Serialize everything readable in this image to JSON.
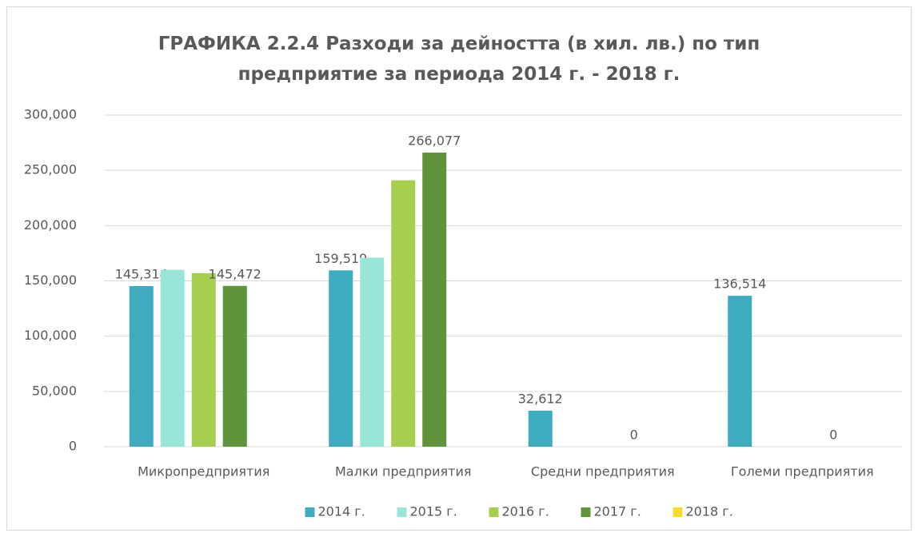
{
  "chart_data": {
    "type": "bar",
    "title": "ГРАФИКА 2.2.4 Разходи за дейността (в хил. лв.) по тип предприятие за периода 2014 г. - 2018 г.",
    "categories": [
      "Микропредприятия",
      "Малки предприятия",
      "Средни предприятия",
      "Големи предприятия"
    ],
    "series": [
      {
        "name": "2014 г.",
        "color": "#3eacbe",
        "values": [
          145314,
          159519,
          32612,
          136514
        ],
        "value_labels": [
          "145,314",
          "159,519",
          "32,612",
          "136,514"
        ]
      },
      {
        "name": "2015 г.",
        "color": "#99e6d8",
        "values": [
          160000,
          171000,
          null,
          null
        ]
      },
      {
        "name": "2016 г.",
        "color": "#a5cf4c",
        "values": [
          157000,
          241000,
          null,
          null
        ]
      },
      {
        "name": "2017 г.",
        "color": "#5e943c",
        "values": [
          145472,
          266077,
          0,
          0
        ],
        "value_labels": [
          "145,472",
          "266,077",
          "0",
          "0"
        ]
      },
      {
        "name": "2018 г.",
        "color": "#f5dc2e",
        "values": [
          null,
          null,
          null,
          null
        ]
      }
    ],
    "ylim": [
      0,
      300000
    ],
    "yticks": [
      0,
      {
        "value": 50000,
        "label": "50,000"
      },
      {
        "value": 100000,
        "label": "100,000"
      },
      {
        "value": 150000,
        "label": "150,000"
      },
      {
        "value": 200000,
        "label": "200,000"
      },
      {
        "value": 250000,
        "label": "250,000"
      },
      {
        "value": 300000,
        "label": "300,000"
      }
    ],
    "grid": true,
    "legend": "bottom"
  }
}
